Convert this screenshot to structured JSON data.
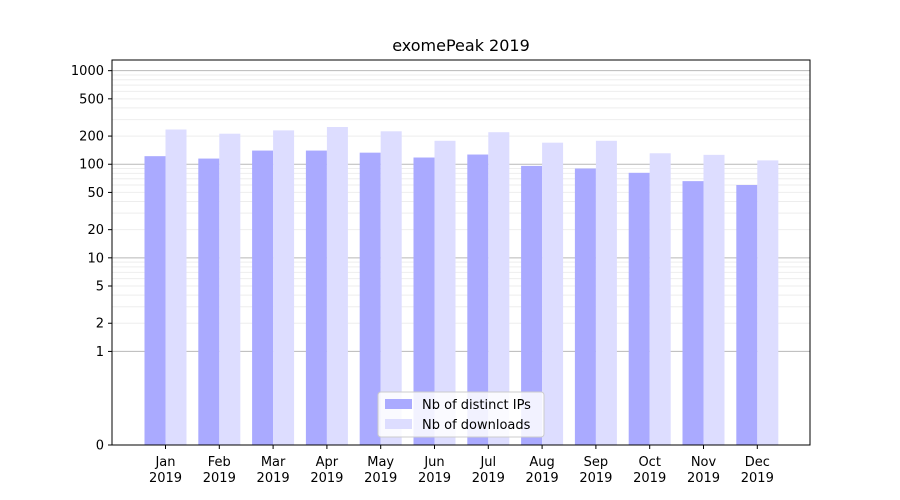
{
  "chart_data": {
    "type": "bar",
    "title": "exomePeak 2019",
    "xlabel": "",
    "ylabel": "",
    "y_scale": "symlog",
    "ylim": [
      0,
      1300
    ],
    "y_ticks": [
      0,
      1,
      2,
      5,
      10,
      20,
      50,
      100,
      200,
      500,
      1000
    ],
    "y_tick_labels": [
      "0",
      "1",
      "2",
      "5",
      "10",
      "20",
      "50",
      "100",
      "200",
      "500",
      "1000"
    ],
    "grid": true,
    "legend_position": "lower-center",
    "categories": [
      [
        "Jan",
        "2019"
      ],
      [
        "Feb",
        "2019"
      ],
      [
        "Mar",
        "2019"
      ],
      [
        "Apr",
        "2019"
      ],
      [
        "May",
        "2019"
      ],
      [
        "Jun",
        "2019"
      ],
      [
        "Jul",
        "2019"
      ],
      [
        "Aug",
        "2019"
      ],
      [
        "Sep",
        "2019"
      ],
      [
        "Oct",
        "2019"
      ],
      [
        "Nov",
        "2019"
      ],
      [
        "Dec",
        "2019"
      ]
    ],
    "series": [
      {
        "name": "Nb of distinct IPs",
        "color": "#aaaaff",
        "values": [
          122,
          115,
          140,
          140,
          133,
          118,
          127,
          96,
          90,
          81,
          66,
          60
        ]
      },
      {
        "name": "Nb of downloads",
        "color": "#ddddff",
        "values": [
          235,
          212,
          230,
          250,
          225,
          178,
          220,
          170,
          178,
          131,
          126,
          110
        ]
      }
    ]
  }
}
